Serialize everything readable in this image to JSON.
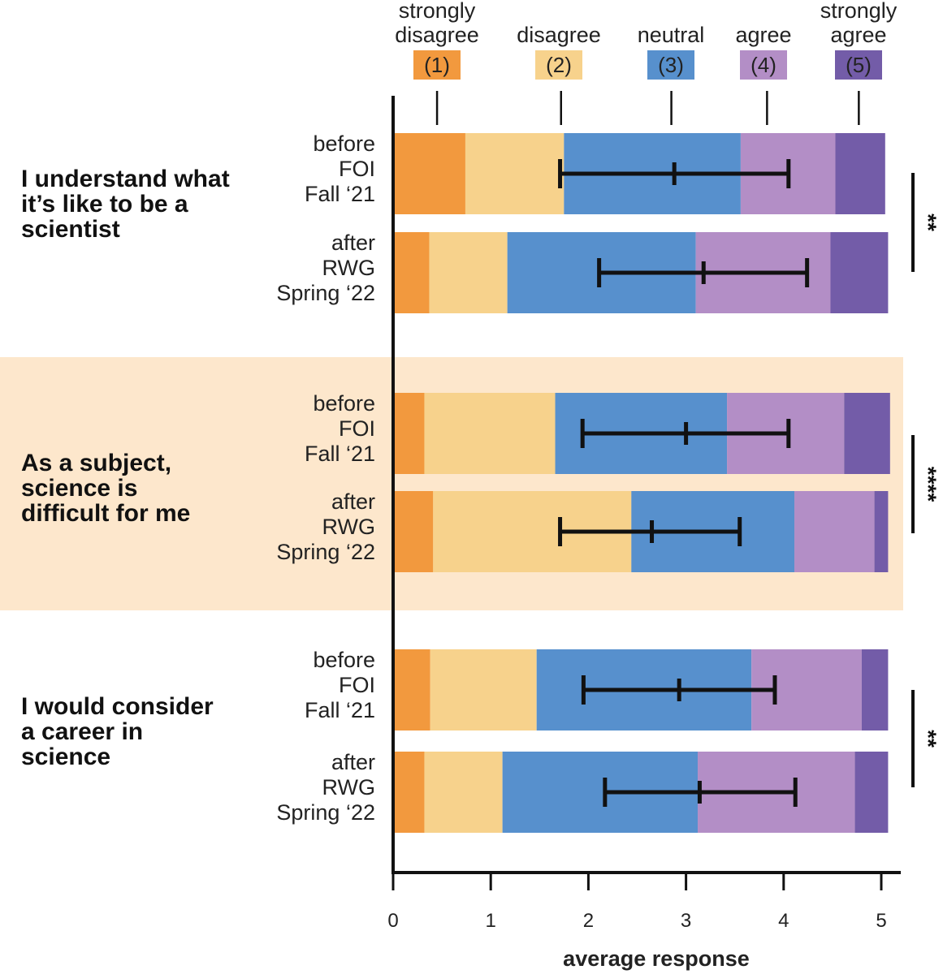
{
  "colors": {
    "strongly_disagree": "#f2993e",
    "disagree": "#f7d28c",
    "neutral": "#5790cd",
    "agree": "#b38ec6",
    "strongly_agree": "#735ca8",
    "highlight_band": "#fde7cc"
  },
  "chart_data": {
    "type": "bar",
    "orientation": "horizontal-stacked",
    "xlabel": "average response",
    "xlim": [
      0,
      5.2
    ],
    "xticks": [
      "0",
      "1",
      "2",
      "3",
      "4",
      "5"
    ],
    "legend": {
      "placement": "top",
      "entries": [
        {
          "key": "strongly_disagree",
          "label_line1": "strongly",
          "label_line2": "disagree",
          "code": "(1)",
          "marker": 0.45
        },
        {
          "key": "disagree",
          "label_line1": "",
          "label_line2": "disagree",
          "code": "(2)",
          "marker": 1.72
        },
        {
          "key": "neutral",
          "label_line1": "",
          "label_line2": "neutral",
          "code": "(3)",
          "marker": 2.85
        },
        {
          "key": "agree",
          "label_line1": "",
          "label_line2": "agree",
          "code": "(4)",
          "marker": 3.83
        },
        {
          "key": "strongly_agree",
          "label_line1": "strongly",
          "label_line2": "agree",
          "code": "(5)",
          "marker": 4.77
        }
      ]
    },
    "groups": [
      {
        "question": [
          "I understand what",
          "it’s like to be a",
          "scientist"
        ],
        "highlight": false,
        "significance": "**",
        "bars": [
          {
            "label": [
              "before",
              "FOI",
              "Fall ‘21"
            ],
            "segments": [
              0.74,
              1.01,
              1.81,
              0.97,
              0.51
            ],
            "mean": 2.88,
            "err_low": 1.71,
            "err_high": 4.05
          },
          {
            "label": [
              "after",
              "RWG",
              "Spring ‘22"
            ],
            "segments": [
              0.37,
              0.8,
              1.93,
              1.38,
              0.59
            ],
            "mean": 3.18,
            "err_low": 2.11,
            "err_high": 4.24
          }
        ]
      },
      {
        "question": [
          "As a subject,",
          "science is",
          "difficult for me"
        ],
        "highlight": true,
        "significance": "****",
        "bars": [
          {
            "label": [
              "before",
              "FOI",
              "Fall ‘21"
            ],
            "segments": [
              0.32,
              1.34,
              1.76,
              1.2,
              0.47
            ],
            "mean": 3.0,
            "err_low": 1.94,
            "err_high": 4.05
          },
          {
            "label": [
              "after",
              "RWG",
              "Spring ‘22"
            ],
            "segments": [
              0.41,
              2.03,
              1.67,
              0.82,
              0.14
            ],
            "mean": 2.65,
            "err_low": 1.71,
            "err_high": 3.55
          }
        ]
      },
      {
        "question": [
          "I would consider",
          "a career in",
          "science"
        ],
        "highlight": false,
        "significance": "**",
        "bars": [
          {
            "label": [
              "before",
              "FOI",
              "Fall ‘21"
            ],
            "segments": [
              0.38,
              1.09,
              2.2,
              1.13,
              0.27
            ],
            "mean": 2.93,
            "err_low": 1.95,
            "err_high": 3.91
          },
          {
            "label": [
              "after",
              "RWG",
              "Spring ‘22"
            ],
            "segments": [
              0.32,
              0.8,
              2.0,
              1.61,
              0.34
            ],
            "mean": 3.14,
            "err_low": 2.17,
            "err_high": 4.12
          }
        ]
      }
    ]
  }
}
